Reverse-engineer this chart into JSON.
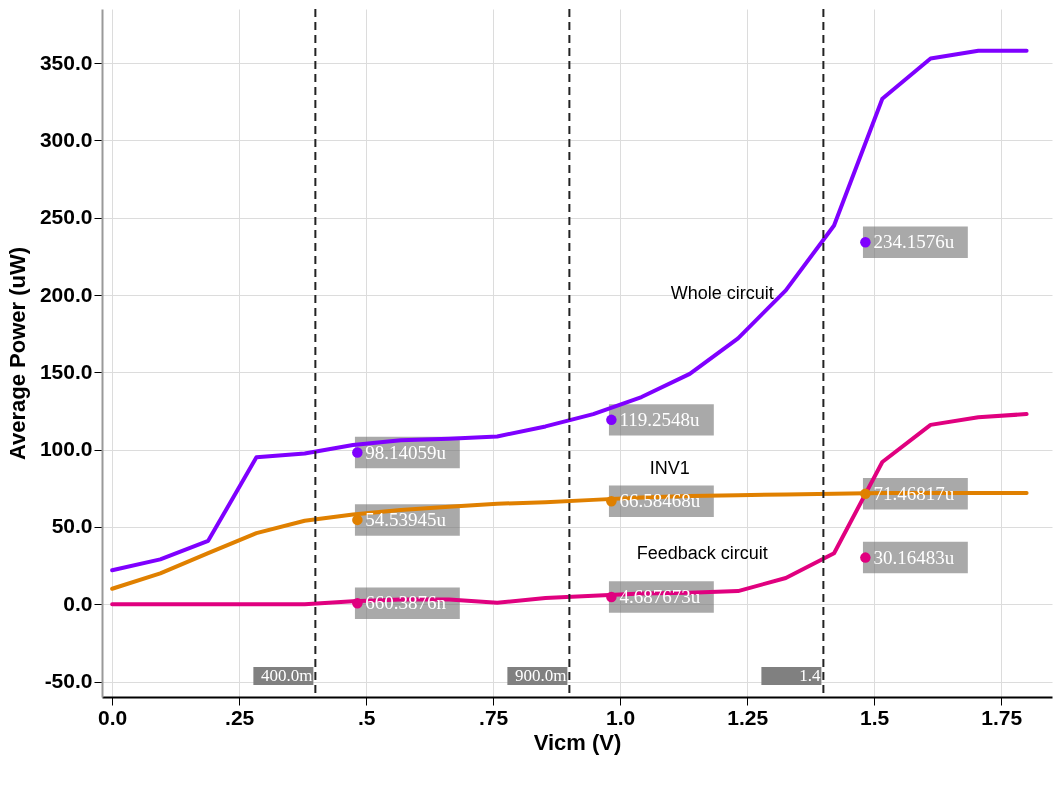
{
  "chart_data": {
    "type": "line",
    "xlabel": "Vicm (V)",
    "ylabel": "Average Power (uW)",
    "x": [
      0,
      0.0947,
      0.189,
      0.284,
      0.379,
      0.474,
      0.568,
      0.663,
      0.758,
      0.853,
      0.947,
      1.042,
      1.137,
      1.232,
      1.326,
      1.421,
      1.516,
      1.611,
      1.705,
      1.8
    ],
    "series": [
      {
        "name": "Whole circuit",
        "color": "#7f00ff",
        "values": [
          22,
          29,
          41,
          95,
          97.5,
          103,
          106,
          107,
          108.5,
          115,
          123,
          134,
          149,
          172,
          203,
          245,
          327,
          353,
          358,
          358
        ]
      },
      {
        "name": "INV1",
        "color": "#e08000",
        "values": [
          10,
          20,
          33,
          46,
          54,
          58,
          61,
          63,
          65,
          66,
          67.5,
          69,
          70,
          70.5,
          71,
          71.5,
          72,
          72,
          72,
          72
        ]
      },
      {
        "name": "Feedback circuit",
        "color": "#e0007f",
        "values": [
          0,
          0,
          0,
          0,
          0,
          2,
          3,
          3,
          1,
          4,
          5.5,
          7,
          7.5,
          8.5,
          17,
          33,
          92,
          116,
          121,
          123
        ]
      }
    ],
    "xlim": [
      -0.02,
      1.85
    ],
    "ylim": [
      -60,
      385
    ],
    "xticks": [
      {
        "value": 0,
        "label": "0.0"
      },
      {
        "value": 0.25,
        "label": ".25"
      },
      {
        "value": 0.5,
        "label": ".5"
      },
      {
        "value": 0.75,
        "label": ".75"
      },
      {
        "value": 1,
        "label": "1.0"
      },
      1.25,
      1.5,
      1.75
    ],
    "yticks": [
      {
        "value": -50,
        "label": "-50.0"
      },
      {
        "value": 0,
        "label": "0.0"
      },
      {
        "value": 50,
        "label": "50.0"
      },
      {
        "value": 100,
        "label": "100.0"
      },
      {
        "value": 150,
        "label": "150.0"
      },
      {
        "value": 200,
        "label": "200.0"
      },
      {
        "value": 250,
        "label": "250.0"
      },
      {
        "value": 300,
        "label": "300.0"
      },
      {
        "value": 350,
        "label": "350.0"
      }
    ],
    "grid": true,
    "marker": "none",
    "line_style": "solid",
    "ref_lines": [
      {
        "axis": "x",
        "value": 0.4,
        "label": "400.0m",
        "line_style": "dashed"
      },
      {
        "axis": "x",
        "value": 0.9,
        "label": "900.0m",
        "line_style": "dashed"
      },
      {
        "axis": "x",
        "value": 1.4,
        "label": "1.4",
        "line_style": "dashed"
      }
    ],
    "annotations": [
      {
        "text": "98.14059u",
        "x": 0.4,
        "y": 98.14059
      },
      {
        "text": "54.53945u",
        "x": 0.4,
        "y": 54.53945
      },
      {
        "text": "660.3876n",
        "x": 0.4,
        "y": 0.6603876
      },
      {
        "text": "119.2548u",
        "x": 0.9,
        "y": 119.2548
      },
      {
        "text": "66.58468u",
        "x": 0.9,
        "y": 66.58468
      },
      {
        "text": "4.687673u",
        "x": 0.9,
        "y": 4.687673
      },
      {
        "text": "234.1576u",
        "x": 1.4,
        "y": 234.1576
      },
      {
        "text": "71.46817u",
        "x": 1.4,
        "y": 71.46817
      },
      {
        "text": "30.16483u",
        "x": 1.4,
        "y": 30.16483
      }
    ]
  }
}
